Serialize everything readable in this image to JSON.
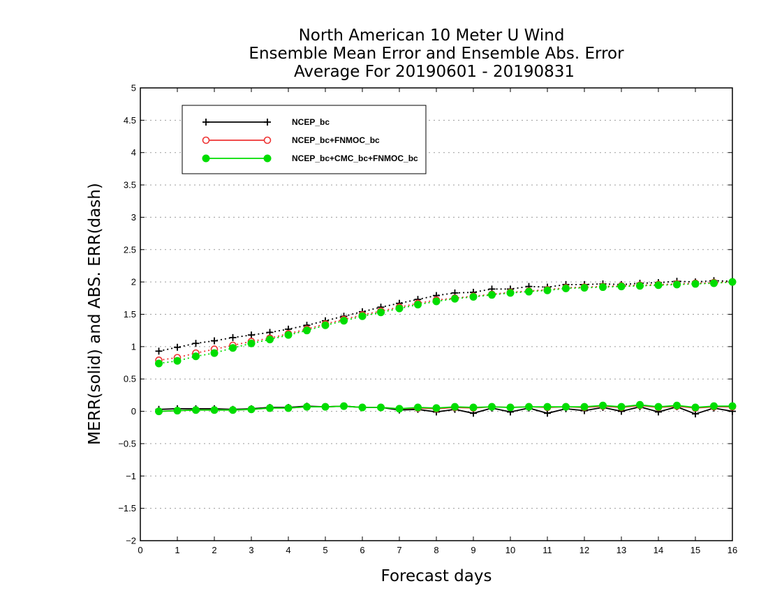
{
  "chart_data": {
    "type": "line",
    "title_lines": [
      "North American 10 Meter U Wind",
      "Ensemble Mean Error and Ensemble Abs. Error",
      "Average For 20190601 - 20190831"
    ],
    "xlabel": "Forecast days",
    "ylabel": "MERR(solid) and ABS. ERR(dash)",
    "xlim": [
      0,
      16
    ],
    "ylim": [
      -2,
      5
    ],
    "xticks": [
      0,
      1,
      2,
      3,
      4,
      5,
      6,
      7,
      8,
      9,
      10,
      11,
      12,
      13,
      14,
      15,
      16
    ],
    "yticks": [
      -2,
      -1.5,
      -1,
      -0.5,
      0,
      0.5,
      1,
      1.5,
      2,
      2.5,
      3,
      3.5,
      4,
      4.5,
      5
    ],
    "grid": "horizontal-dotted",
    "legend_position": "top-left",
    "x": [
      0.5,
      1,
      1.5,
      2,
      2.5,
      3,
      3.5,
      4,
      4.5,
      5,
      5.5,
      6,
      6.5,
      7,
      7.5,
      8,
      8.5,
      9,
      9.5,
      10,
      10.5,
      11,
      11.5,
      12,
      12.5,
      13,
      13.5,
      14,
      14.5,
      15,
      15.5,
      16
    ],
    "series": [
      {
        "name": "NCEP_bc",
        "color": "#000000",
        "marker": "plus",
        "mean_error": [
          0.03,
          0.04,
          0.04,
          0.04,
          0.03,
          0.04,
          0.06,
          0.06,
          0.08,
          0.07,
          0.08,
          0.06,
          0.06,
          0.02,
          0.03,
          -0.01,
          0.03,
          -0.03,
          0.05,
          -0.01,
          0.05,
          -0.03,
          0.04,
          0.01,
          0.06,
          0.0,
          0.07,
          -0.01,
          0.07,
          -0.04,
          0.05,
          0.0
        ],
        "abs_error": [
          0.93,
          0.99,
          1.05,
          1.09,
          1.14,
          1.18,
          1.22,
          1.27,
          1.33,
          1.4,
          1.47,
          1.54,
          1.61,
          1.67,
          1.73,
          1.79,
          1.83,
          1.84,
          1.89,
          1.89,
          1.93,
          1.92,
          1.96,
          1.96,
          1.97,
          1.96,
          1.98,
          1.99,
          2.01,
          2.0,
          2.02,
          2.01
        ]
      },
      {
        "name": "NCEP_bc+FNMOC_bc",
        "color": "#ee3333",
        "marker": "open-circle",
        "mean_error": [
          0.0,
          0.01,
          0.02,
          0.02,
          0.02,
          0.03,
          0.05,
          0.05,
          0.07,
          0.07,
          0.08,
          0.06,
          0.06,
          0.04,
          0.05,
          0.04,
          0.06,
          0.05,
          0.07,
          0.06,
          0.07,
          0.06,
          0.07,
          0.06,
          0.08,
          0.06,
          0.09,
          0.06,
          0.08,
          0.05,
          0.07,
          0.07
        ],
        "abs_error": [
          0.79,
          0.83,
          0.9,
          0.96,
          1.02,
          1.08,
          1.13,
          1.2,
          1.27,
          1.35,
          1.42,
          1.49,
          1.55,
          1.61,
          1.67,
          1.72,
          1.75,
          1.78,
          1.81,
          1.84,
          1.86,
          1.88,
          1.91,
          1.92,
          1.93,
          1.94,
          1.95,
          1.96,
          1.97,
          1.98,
          1.99,
          2.0
        ]
      },
      {
        "name": "NCEP_bc+CMC_bc+FNMOC_bc",
        "color": "#00dd00",
        "marker": "filled-circle",
        "mean_error": [
          0.0,
          0.01,
          0.02,
          0.02,
          0.02,
          0.03,
          0.05,
          0.05,
          0.07,
          0.07,
          0.08,
          0.06,
          0.06,
          0.04,
          0.06,
          0.05,
          0.07,
          0.06,
          0.07,
          0.06,
          0.07,
          0.07,
          0.07,
          0.07,
          0.09,
          0.07,
          0.1,
          0.07,
          0.09,
          0.06,
          0.08,
          0.08
        ],
        "abs_error": [
          0.74,
          0.78,
          0.85,
          0.9,
          0.98,
          1.05,
          1.11,
          1.18,
          1.25,
          1.33,
          1.4,
          1.47,
          1.53,
          1.59,
          1.65,
          1.7,
          1.74,
          1.77,
          1.8,
          1.83,
          1.85,
          1.87,
          1.9,
          1.91,
          1.92,
          1.93,
          1.94,
          1.95,
          1.96,
          1.97,
          1.98,
          2.0
        ]
      }
    ]
  }
}
